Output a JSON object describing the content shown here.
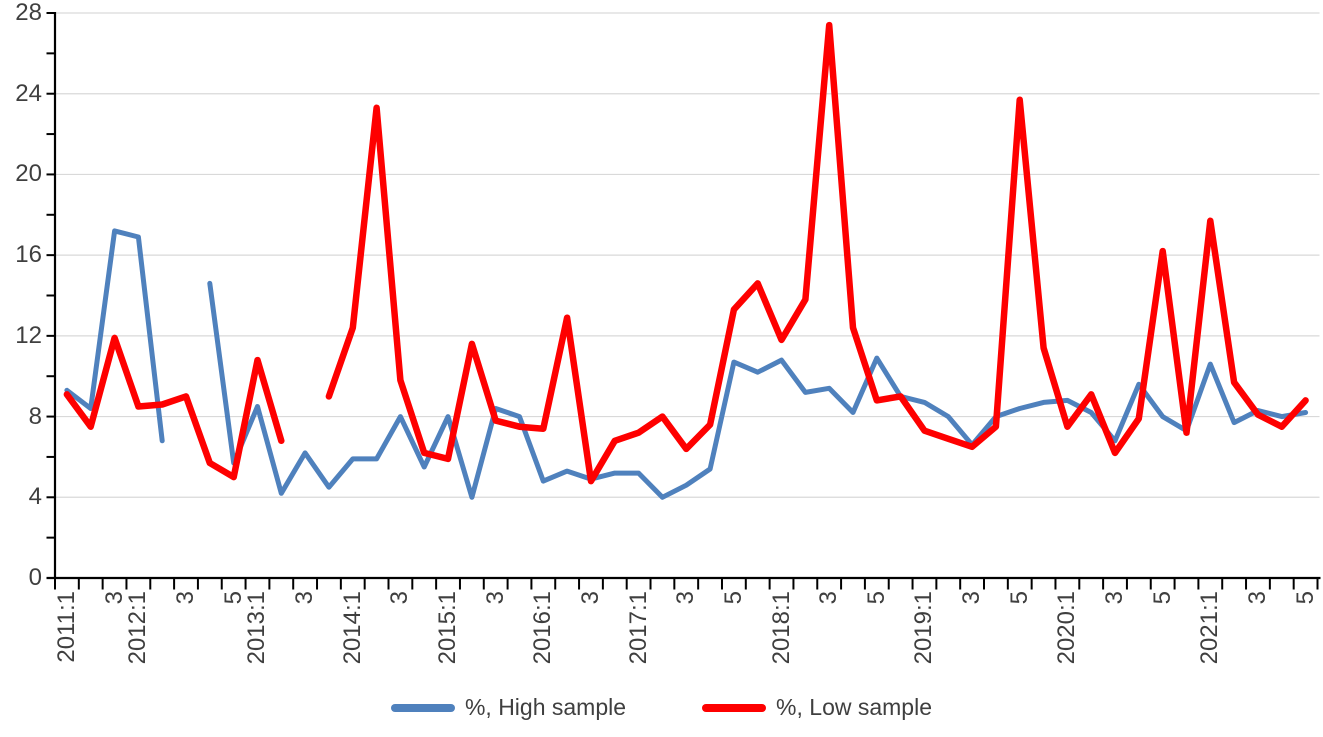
{
  "chart_data": {
    "type": "line",
    "title": "",
    "xlabel": "",
    "ylabel": "",
    "ylim": [
      0,
      28
    ],
    "y_major_ticks": [
      0,
      4,
      8,
      12,
      16,
      20,
      24,
      28
    ],
    "y_minor_step": 2,
    "grid": "horizontal-major-only",
    "legend_position": "bottom-center",
    "x_axis_note": "survey waves per year; rotated tick labels shown every other category",
    "categories": [
      "2011:1",
      "2011:2",
      "2011:3",
      "2012:1",
      "2012:2",
      "2012:3",
      "2012:4",
      "2012:5",
      "2013:1",
      "2013:2",
      "2013:3",
      "2013:4",
      "2014:1",
      "2014:2",
      "2014:3",
      "2014:4",
      "2015:1",
      "2015:2",
      "2015:3",
      "2015:4",
      "2016:1",
      "2016:2",
      "2016:3",
      "2016:4",
      "2017:1",
      "2017:2",
      "2017:3",
      "2017:4",
      "2017:5",
      "2017:6",
      "2018:1",
      "2018:2",
      "2018:3",
      "2018:4",
      "2018:5",
      "2018:6",
      "2019:1",
      "2019:2",
      "2019:3",
      "2019:4",
      "2019:5",
      "2019:6",
      "2020:1",
      "2020:2",
      "2020:3",
      "2020:4",
      "2020:5",
      "2020:6",
      "2021:1",
      "2021:2",
      "2021:3",
      "2021:4",
      "2021:5"
    ],
    "tick_labels": [
      "2011:1",
      "",
      "3",
      "2012:1",
      "",
      "3",
      "",
      "5",
      "2013:1",
      "",
      "3",
      "",
      "2014:1",
      "",
      "3",
      "",
      "2015:1",
      "",
      "3",
      "",
      "2016:1",
      "",
      "3",
      "",
      "2017:1",
      "",
      "3",
      "",
      "5",
      "",
      "2018:1",
      "",
      "3",
      "",
      "5",
      "",
      "2019:1",
      "",
      "3",
      "",
      "5",
      "",
      "2020:1",
      "",
      "3",
      "",
      "5",
      "",
      "2021:1",
      "",
      "3",
      "",
      "5"
    ],
    "series": [
      {
        "name": "%, High sample",
        "color": "#4F81BD",
        "stroke_width": 5,
        "values": [
          9.3,
          8.4,
          17.2,
          16.9,
          6.8,
          null,
          14.6,
          5.7,
          8.5,
          4.2,
          6.2,
          4.5,
          5.9,
          5.9,
          8.0,
          5.5,
          8.0,
          4.0,
          8.4,
          8.0,
          4.8,
          5.3,
          4.9,
          5.2,
          5.2,
          4.0,
          4.6,
          5.4,
          10.7,
          10.2,
          10.8,
          9.2,
          9.4,
          8.2,
          10.9,
          9.0,
          8.7,
          8.0,
          6.6,
          8.0,
          8.4,
          8.7,
          8.8,
          8.2,
          6.8,
          9.6,
          8.0,
          7.3,
          10.6,
          7.7,
          8.3,
          8.0,
          8.2
        ]
      },
      {
        "name": "%, Low sample",
        "color": "#FE0000",
        "stroke_width": 6.5,
        "values": [
          9.1,
          7.5,
          11.9,
          8.5,
          8.6,
          9.0,
          5.7,
          5.0,
          10.8,
          6.8,
          null,
          9.0,
          12.4,
          23.3,
          9.8,
          6.2,
          5.9,
          11.6,
          7.8,
          7.5,
          7.4,
          12.9,
          4.8,
          6.8,
          7.2,
          8.0,
          6.4,
          7.6,
          13.3,
          14.6,
          11.8,
          13.8,
          27.4,
          12.4,
          8.8,
          9.0,
          7.3,
          6.9,
          6.5,
          7.5,
          23.7,
          11.4,
          7.5,
          9.1,
          6.2,
          7.9,
          16.2,
          7.2,
          17.7,
          9.7,
          8.1,
          7.5,
          8.8
        ]
      }
    ]
  },
  "style": {
    "axis_color": "#000000",
    "gridline_color": "#D9D9D9",
    "label_color": "#3f3f3f",
    "background": "#FFFFFF"
  }
}
